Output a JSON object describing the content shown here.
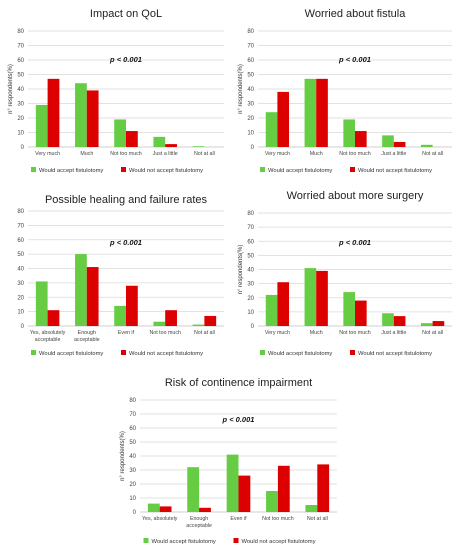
{
  "colors": {
    "accept": "#66cc44",
    "not_accept": "#dd0000",
    "grid": "#d9d9d9",
    "axis": "#bfbfbf"
  },
  "chart_data": [
    {
      "type": "bar",
      "title": "Impact on QoL",
      "annotation": "p < 0.001",
      "ylabel": "n° respondents(%)",
      "ylim": [
        0,
        80
      ],
      "yticks": [
        0,
        10,
        20,
        30,
        40,
        50,
        60,
        70,
        80
      ],
      "grid": true,
      "legend_position": "bottom",
      "categories": [
        [
          "Very much"
        ],
        [
          "Much"
        ],
        [
          "Not too much"
        ],
        [
          "Just a little"
        ],
        [
          "Not at all"
        ]
      ],
      "series": [
        {
          "name": "Would accept fistulotomy",
          "values": [
            29,
            44,
            19,
            7,
            0.5
          ]
        },
        {
          "name": "Would not accept fistulotomy",
          "values": [
            47,
            39,
            11,
            2,
            0
          ]
        }
      ]
    },
    {
      "type": "bar",
      "title": "Worried about fistula",
      "annotation": "p < 0.001",
      "ylabel": "n° respondents(%)",
      "ylim": [
        0,
        80
      ],
      "yticks": [
        0,
        10,
        20,
        30,
        40,
        50,
        60,
        70,
        80
      ],
      "grid": true,
      "legend_position": "bottom",
      "categories": [
        [
          "Very much"
        ],
        [
          "Much"
        ],
        [
          "Not too much"
        ],
        [
          "Just a little"
        ],
        [
          "Not at all"
        ]
      ],
      "series": [
        {
          "name": "Would accept fistulotomy",
          "values": [
            24,
            47,
            19,
            8,
            1.5
          ]
        },
        {
          "name": "Would not accept fistulotomy",
          "values": [
            38,
            47,
            11,
            3.5,
            0
          ]
        }
      ]
    },
    {
      "type": "bar",
      "title": "Possible healing and failure rates",
      "annotation": "p < 0.001",
      "ylabel": "",
      "ylim": [
        0,
        80
      ],
      "yticks": [
        0,
        10,
        20,
        30,
        40,
        50,
        60,
        70,
        80
      ],
      "grid": true,
      "legend_position": "bottom",
      "categories": [
        [
          "Yes, absolutely",
          "acceptable"
        ],
        [
          "Enough",
          "acceptable"
        ],
        [
          "Even if"
        ],
        [
          "Not too much"
        ],
        [
          "Not at all"
        ]
      ],
      "series": [
        {
          "name": "Would accept fistulotomy",
          "values": [
            31,
            50,
            14,
            3,
            1
          ]
        },
        {
          "name": "Would not accept fistulotomy",
          "values": [
            11,
            41,
            28,
            11,
            7
          ]
        }
      ]
    },
    {
      "type": "bar",
      "title": "Worried about more surgery",
      "annotation": "p < 0.001",
      "ylabel": "n° respondents(%)",
      "ylim": [
        0,
        80
      ],
      "yticks": [
        0,
        10,
        20,
        30,
        40,
        50,
        60,
        70,
        80
      ],
      "grid": true,
      "legend_position": "bottom",
      "categories": [
        [
          "Very much"
        ],
        [
          "Much"
        ],
        [
          "Not too much"
        ],
        [
          "Just a little"
        ],
        [
          "Not at all"
        ]
      ],
      "series": [
        {
          "name": "Would accept fistulotomy",
          "values": [
            22,
            41,
            24,
            9,
            2
          ]
        },
        {
          "name": "Would not accept fistulotomy",
          "values": [
            31,
            39,
            18,
            7,
            3.5
          ]
        }
      ]
    },
    {
      "type": "bar",
      "title": "Risk of continence impairment",
      "annotation": "p < 0.001",
      "ylabel": "n° respondents(%)",
      "ylim": [
        0,
        80
      ],
      "yticks": [
        0,
        10,
        20,
        30,
        40,
        50,
        60,
        70,
        80
      ],
      "grid": true,
      "legend_position": "bottom",
      "categories": [
        [
          "Yes, absolutely"
        ],
        [
          "Enough",
          "acceptable"
        ],
        [
          "Even if"
        ],
        [
          "Not too much"
        ],
        [
          "Not at all"
        ]
      ],
      "series": [
        {
          "name": "Would accept fistulotomy",
          "values": [
            6,
            32,
            41,
            15,
            5
          ]
        },
        {
          "name": "Would not accept fistulotomy",
          "values": [
            4,
            3,
            26,
            33,
            34
          ]
        }
      ]
    }
  ]
}
